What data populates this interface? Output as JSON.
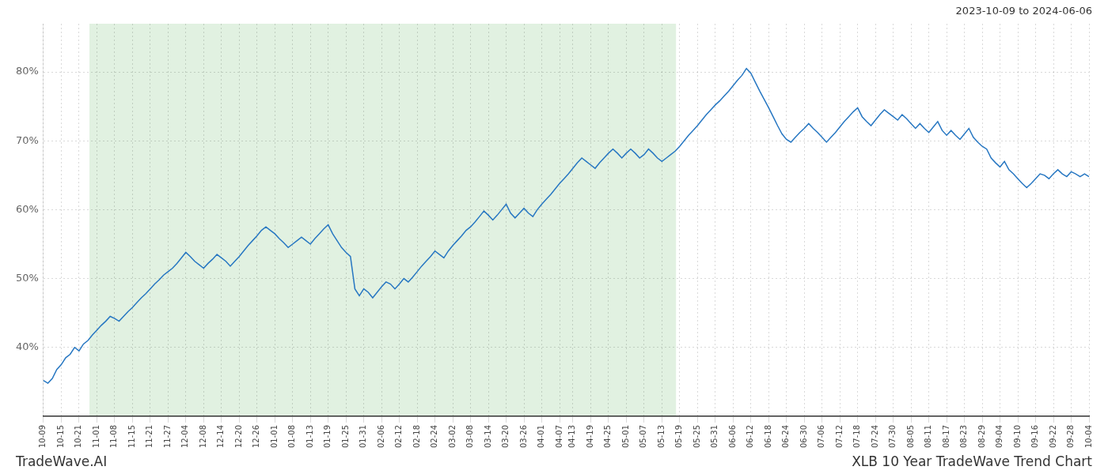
{
  "chart_data": {
    "type": "line",
    "title": "XLB 10 Year TradeWave Trend Chart",
    "subtitle": "2023-10-09 to 2024-06-06",
    "annotations": [
      "TradeWave.AI"
    ],
    "color": "#2777C2",
    "grid": true,
    "ylim": [
      30,
      87
    ],
    "yticks": [
      {
        "value": 40,
        "label": "40%"
      },
      {
        "value": 50,
        "label": "50%"
      },
      {
        "value": 60,
        "label": "60%"
      },
      {
        "value": 70,
        "label": "70%"
      },
      {
        "value": 80,
        "label": "80%"
      }
    ],
    "highlight": {
      "start": 10.34,
      "end": 142.175,
      "color": "#c8e6c8"
    },
    "categories": [
      "10-09",
      null,
      null,
      null,
      "10-15",
      null,
      null,
      null,
      "10-21",
      null,
      null,
      null,
      "11-01",
      null,
      null,
      null,
      "11-08",
      null,
      null,
      null,
      "11-15",
      null,
      null,
      null,
      "11-21",
      null,
      null,
      null,
      "11-27",
      null,
      null,
      null,
      "12-04",
      null,
      null,
      null,
      "12-08",
      null,
      null,
      null,
      "12-14",
      null,
      null,
      null,
      "12-20",
      null,
      null,
      null,
      "12-26",
      null,
      null,
      null,
      "01-01",
      null,
      null,
      null,
      "01-08",
      null,
      null,
      null,
      "01-13",
      null,
      null,
      null,
      "01-19",
      null,
      null,
      null,
      "01-25",
      null,
      null,
      null,
      "01-31",
      null,
      null,
      null,
      "02-06",
      null,
      null,
      null,
      "02-12",
      null,
      null,
      null,
      "02-18",
      null,
      null,
      null,
      "02-24",
      null,
      null,
      null,
      "03-02",
      null,
      null,
      null,
      "03-08",
      null,
      null,
      null,
      "03-14",
      null,
      null,
      null,
      "03-20",
      null,
      null,
      null,
      "03-26",
      null,
      null,
      null,
      "04-01",
      null,
      null,
      null,
      "04-07",
      null,
      null,
      "04-13",
      null,
      null,
      null,
      "04-19",
      null,
      null,
      null,
      "04-25",
      null,
      null,
      null,
      "05-01",
      null,
      null,
      null,
      "05-07",
      null,
      null,
      null,
      "05-13",
      null,
      null,
      null,
      "05-19",
      null,
      null,
      null,
      "05-25",
      null,
      null,
      null,
      "05-31",
      null,
      null,
      null,
      "06-06",
      null,
      null,
      null,
      "06-12",
      null,
      null,
      null,
      "06-18",
      null,
      null,
      null,
      "06-24",
      null,
      null,
      null,
      "06-30",
      null,
      null,
      null,
      "07-06",
      null,
      null,
      null,
      "07-12",
      null,
      null,
      null,
      "07-18",
      null,
      null,
      null,
      "07-24",
      null,
      null,
      null,
      "07-30",
      null,
      null,
      null,
      "08-05",
      null,
      null,
      null,
      "08-11",
      null,
      null,
      null,
      "08-17",
      null,
      null,
      null,
      "08-23",
      null,
      null,
      null,
      "08-29",
      null,
      null,
      null,
      "09-04",
      null,
      null,
      null,
      "09-10",
      null,
      null,
      null,
      "09-16",
      null,
      null,
      null,
      "09-22",
      null,
      null,
      null,
      "09-28",
      null,
      null,
      null,
      "10-04"
    ],
    "values": [
      35.2,
      34.8,
      35.5,
      36.8,
      37.5,
      38.5,
      39.0,
      40.0,
      39.5,
      40.5,
      41.0,
      41.8,
      42.5,
      43.2,
      43.8,
      44.5,
      44.2,
      43.8,
      44.5,
      45.2,
      45.8,
      46.5,
      47.2,
      47.8,
      48.5,
      49.2,
      49.8,
      50.5,
      51.0,
      51.5,
      52.2,
      53.0,
      53.8,
      53.2,
      52.5,
      52.0,
      51.5,
      52.2,
      52.8,
      53.5,
      53.0,
      52.5,
      51.8,
      52.5,
      53.2,
      54.0,
      54.8,
      55.5,
      56.2,
      57.0,
      57.5,
      57.0,
      56.5,
      55.8,
      55.2,
      54.5,
      55.0,
      55.5,
      56.0,
      55.5,
      55.0,
      55.8,
      56.5,
      57.2,
      57.8,
      56.5,
      55.5,
      54.5,
      53.8,
      53.2,
      48.5,
      47.5,
      48.5,
      48.0,
      47.2,
      48.0,
      48.8,
      49.5,
      49.2,
      48.5,
      49.2,
      50.0,
      49.5,
      50.2,
      51.0,
      51.8,
      52.5,
      53.2,
      54.0,
      53.5,
      53.0,
      54.0,
      54.8,
      55.5,
      56.2,
      57.0,
      57.5,
      58.2,
      59.0,
      59.8,
      59.2,
      58.5,
      59.2,
      60.0,
      60.8,
      59.5,
      58.8,
      59.5,
      60.2,
      59.5,
      59.0,
      60.0,
      60.8,
      61.5,
      62.2,
      63.0,
      63.8,
      64.5,
      65.2,
      66.0,
      66.8,
      67.5,
      67.0,
      66.5,
      66.0,
      66.8,
      67.5,
      68.2,
      68.8,
      68.2,
      67.5,
      68.2,
      68.8,
      68.2,
      67.5,
      68.0,
      68.8,
      68.2,
      67.5,
      67.0,
      67.5,
      68.0,
      68.5,
      69.2,
      70.0,
      70.8,
      71.5,
      72.2,
      73.0,
      73.8,
      74.5,
      75.2,
      75.8,
      76.5,
      77.2,
      78.0,
      78.8,
      79.5,
      80.5,
      79.8,
      78.5,
      77.2,
      76.0,
      74.8,
      73.5,
      72.2,
      71.0,
      70.2,
      69.8,
      70.5,
      71.2,
      71.8,
      72.5,
      71.8,
      71.2,
      70.5,
      69.8,
      70.5,
      71.2,
      72.0,
      72.8,
      73.5,
      74.2,
      74.8,
      73.5,
      72.8,
      72.2,
      73.0,
      73.8,
      74.5,
      74.0,
      73.5,
      73.0,
      73.8,
      73.2,
      72.5,
      71.8,
      72.5,
      71.8,
      71.2,
      72.0,
      72.8,
      71.5,
      70.8,
      71.5,
      70.8,
      70.2,
      71.0,
      71.8,
      70.5,
      69.8,
      69.2,
      68.8,
      67.5,
      66.8,
      66.2,
      67.0,
      65.8,
      65.2,
      64.5,
      63.8,
      63.2,
      63.8,
      64.5,
      65.2,
      65.0,
      64.5,
      65.2,
      65.8,
      65.2,
      64.8,
      65.5,
      65.2,
      64.8,
      65.2,
      64.8
    ]
  }
}
